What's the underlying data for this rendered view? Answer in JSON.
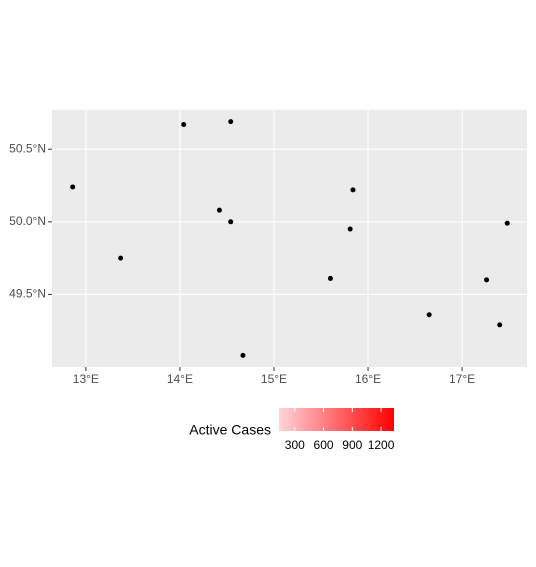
{
  "chart_data": {
    "type": "scatter",
    "x": [
      12.86,
      13.37,
      14.04,
      14.54,
      14.42,
      14.54,
      14.67,
      15.6,
      15.81,
      15.84,
      16.65,
      17.26,
      17.48,
      17.4
    ],
    "values": [
      50.24,
      49.75,
      50.67,
      50.69,
      50.08,
      50.0,
      49.08,
      49.61,
      49.95,
      50.22,
      49.36,
      49.6,
      49.99,
      49.29
    ],
    "color": "#000000",
    "xlim": [
      12.64,
      17.69
    ],
    "ylim": [
      49.0,
      50.77
    ],
    "xticks": [
      {
        "value": 13,
        "label": "13°E"
      },
      {
        "value": 14,
        "label": "14°E"
      },
      {
        "value": 15,
        "label": "15°E"
      },
      {
        "value": 16,
        "label": "16°E"
      },
      {
        "value": 17,
        "label": "17°E"
      }
    ],
    "yticks": [
      {
        "value": 49.5,
        "label": "49.5°N"
      },
      {
        "value": 50.0,
        "label": "50.0°N"
      },
      {
        "value": 50.5,
        "label": "50.5°N"
      }
    ],
    "grid": true,
    "legend": {
      "title": "Active Cases",
      "lim": [
        135,
        1335
      ],
      "ticks": [
        300,
        600,
        900,
        1200
      ],
      "colors": [
        "#ffd3da",
        "#ff0000"
      ]
    }
  }
}
